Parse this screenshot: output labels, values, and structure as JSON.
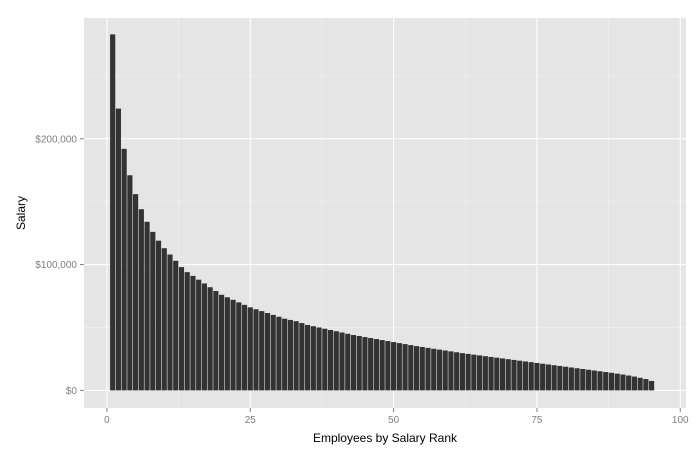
{
  "chart_data": {
    "type": "bar",
    "title": "",
    "xlabel": "Employees by Salary Rank",
    "ylabel": "Salary",
    "xlim": [
      -4,
      101
    ],
    "ylim": [
      -14000,
      296000
    ],
    "x_ticks": [
      0,
      25,
      50,
      75,
      100
    ],
    "x_tick_labels": [
      "0",
      "25",
      "50",
      "75",
      "100"
    ],
    "y_ticks": [
      0,
      100000,
      200000
    ],
    "y_tick_labels": [
      "$0",
      "$100,000",
      "$200,000"
    ],
    "grid": true,
    "legend": "none",
    "colors": {
      "panel": "#e5e5e5",
      "grid": "#ffffff",
      "bar": "#333333",
      "tick_text": "#7f7f7f"
    },
    "x": [
      1,
      2,
      3,
      4,
      5,
      6,
      7,
      8,
      9,
      10,
      11,
      12,
      13,
      14,
      15,
      16,
      17,
      18,
      19,
      20,
      21,
      22,
      23,
      24,
      25,
      26,
      27,
      28,
      29,
      30,
      31,
      32,
      33,
      34,
      35,
      36,
      37,
      38,
      39,
      40,
      41,
      42,
      43,
      44,
      45,
      46,
      47,
      48,
      49,
      50,
      51,
      52,
      53,
      54,
      55,
      56,
      57,
      58,
      59,
      60,
      61,
      62,
      63,
      64,
      65,
      66,
      67,
      68,
      69,
      70,
      71,
      72,
      73,
      74,
      75,
      76,
      77,
      78,
      79,
      80,
      81,
      82,
      83,
      84,
      85,
      86,
      87,
      88,
      89,
      90,
      91,
      92,
      93,
      94,
      95
    ],
    "values": [
      283000,
      224000,
      192000,
      171000,
      156000,
      144000,
      134000,
      126000,
      119000,
      113000,
      108000,
      103000,
      98000,
      94000,
      91000,
      88000,
      85000,
      82000,
      79000,
      76000,
      74000,
      72000,
      70000,
      68000,
      66000,
      64500,
      63000,
      61500,
      60000,
      58500,
      57000,
      56000,
      55000,
      53500,
      52000,
      51000,
      50000,
      49000,
      48000,
      47000,
      46000,
      45000,
      44000,
      43200,
      42400,
      41600,
      40800,
      40000,
      39200,
      38400,
      37600,
      36800,
      36000,
      35200,
      34500,
      33800,
      33100,
      32400,
      31700,
      31000,
      30300,
      29600,
      29000,
      28400,
      27800,
      27200,
      26600,
      26000,
      25400,
      24800,
      24200,
      23600,
      23000,
      22400,
      21800,
      21200,
      20600,
      20000,
      19400,
      18800,
      18200,
      17600,
      17000,
      16400,
      15800,
      15200,
      14600,
      14000,
      13300,
      12600,
      11800,
      11000,
      10000,
      9000,
      7500
    ]
  }
}
